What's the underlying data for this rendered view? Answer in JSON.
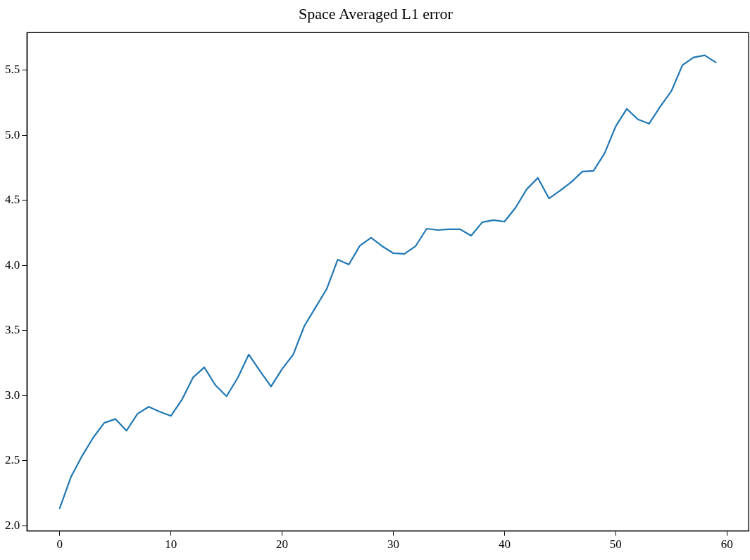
{
  "chart_data": {
    "type": "line",
    "title": "Space Averaged L1 error",
    "x": [
      0,
      1,
      2,
      3,
      4,
      5,
      6,
      7,
      8,
      9,
      10,
      11,
      12,
      13,
      14,
      15,
      16,
      17,
      18,
      19,
      20,
      21,
      22,
      23,
      24,
      25,
      26,
      27,
      28,
      29,
      30,
      31,
      32,
      33,
      34,
      35,
      36,
      37,
      38,
      39,
      40,
      41,
      42,
      43,
      44,
      45,
      46,
      47,
      48,
      49,
      50,
      51,
      52,
      53,
      54,
      55,
      56,
      57,
      58,
      59
    ],
    "series": [
      {
        "color": "#1f77b4",
        "values": [
          2.135,
          2.373,
          2.535,
          2.676,
          2.79,
          2.82,
          2.73,
          2.86,
          2.914,
          2.876,
          2.844,
          2.97,
          3.14,
          3.217,
          3.08,
          2.995,
          3.135,
          3.315,
          3.19,
          3.07,
          3.205,
          3.315,
          3.535,
          3.676,
          3.817,
          4.044,
          4.006,
          4.152,
          4.212,
          4.147,
          4.093,
          4.088,
          4.147,
          4.282,
          4.271,
          4.277,
          4.277,
          4.228,
          4.331,
          4.347,
          4.336,
          4.444,
          4.585,
          4.672,
          4.514,
          4.574,
          4.639,
          4.72,
          4.726,
          4.861,
          5.067,
          5.202,
          5.121,
          5.088,
          5.218,
          5.337,
          5.537,
          5.597,
          5.613,
          5.559
        ]
      }
    ],
    "xlim": [
      -2.95,
      61.95
    ],
    "xticks": [
      0,
      10,
      20,
      30,
      40,
      50,
      60
    ],
    "ylim": [
      1.961,
      5.787
    ],
    "yticks": [
      {
        "value": 2.0,
        "label": "2.0"
      },
      {
        "value": 2.5,
        "label": "2.5"
      },
      {
        "value": 3.0,
        "label": "3.0"
      },
      {
        "value": 3.5,
        "label": "3.5"
      },
      {
        "value": 4.0,
        "label": "4.0"
      },
      {
        "value": 4.5,
        "label": "4.5"
      },
      {
        "value": 5.0,
        "label": "5.0"
      },
      {
        "value": 5.5,
        "label": "5.5"
      }
    ],
    "grid": false,
    "legend": false,
    "marker": "none",
    "line_style": "solid"
  }
}
